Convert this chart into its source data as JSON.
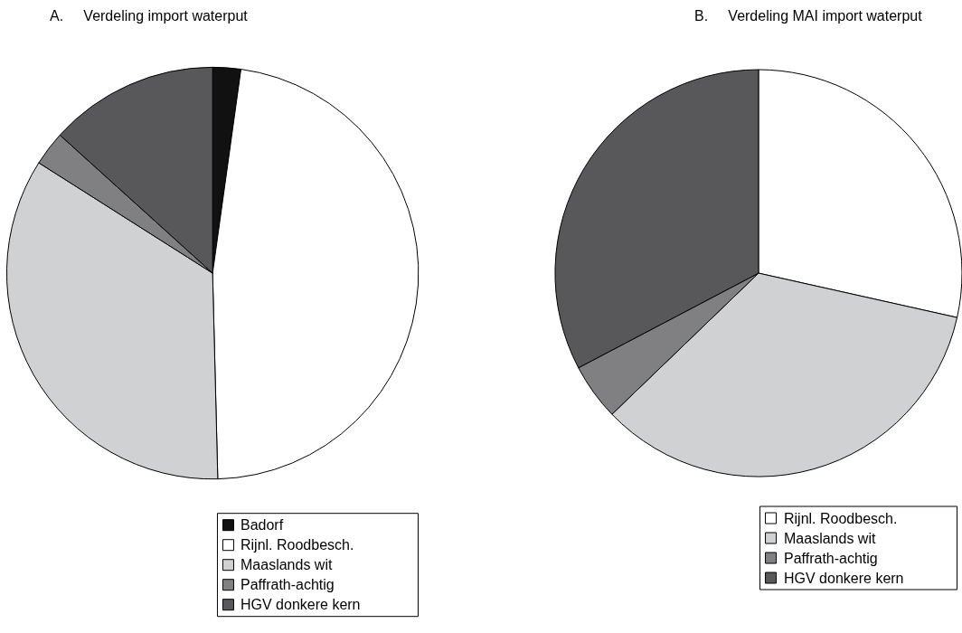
{
  "chart_data": [
    {
      "type": "pie",
      "title": "A.     Verdeling import waterput",
      "legend": "bottom",
      "categories": [
        "Badorf",
        "Rijnl. Roodbesch.",
        "Maaslands wit",
        "Paffrath-achtig",
        "HGV donkere kern"
      ],
      "values": [
        2.2,
        47.4,
        34.4,
        2.7,
        13.3
      ],
      "colors": [
        "#111111",
        "#ffffff",
        "#d0d1d3",
        "#808083",
        "#58585a"
      ]
    },
    {
      "type": "pie",
      "title": "B.     Verdeling MAI import waterput",
      "legend": "bottom right",
      "categories": [
        "Rijnl. Roodbesch.",
        "Maaslands wit",
        "Paffrath-achtig",
        "HGV donkere kern"
      ],
      "values": [
        28.5,
        34.3,
        4.5,
        32.7
      ],
      "colors": [
        "#ffffff",
        "#d0d1d3",
        "#808083",
        "#58585a"
      ]
    }
  ]
}
